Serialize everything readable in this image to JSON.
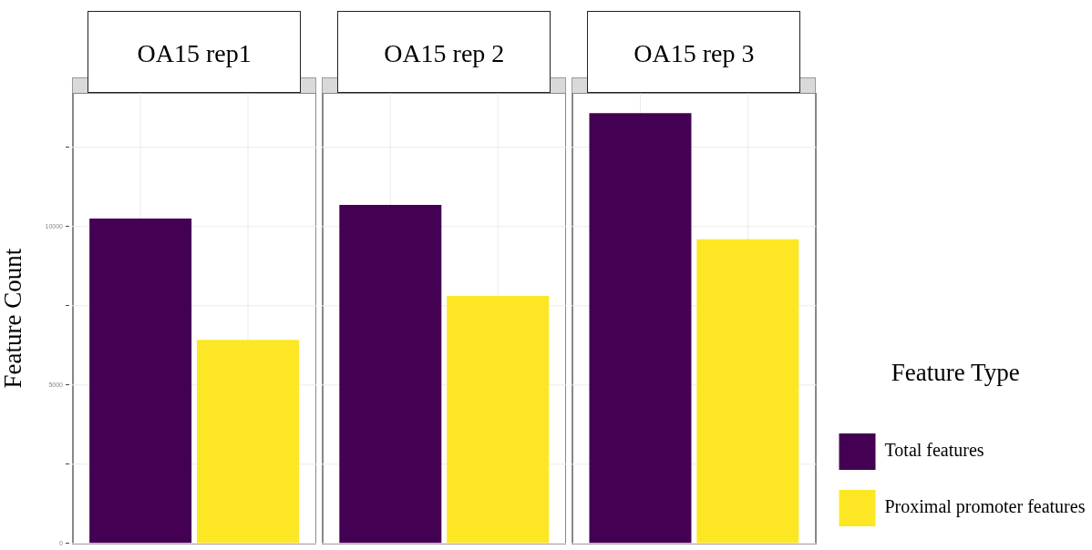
{
  "chart_data": {
    "type": "bar",
    "ylabel": "Feature Count",
    "legend_title": "Feature Type",
    "categories": [
      "OA15 rep1",
      "OA15 rep 2",
      "OA15 rep 3"
    ],
    "series": [
      {
        "name": "Total features",
        "color": "#440154",
        "values": [
          10250,
          10680,
          13580
        ]
      },
      {
        "name": "Proximal promoter features",
        "color": "#fde725",
        "values": [
          6420,
          7810,
          9600
        ]
      }
    ],
    "ylim": [
      0,
      14200
    ],
    "yticks": [
      0,
      {
        "value": 2500,
        "label": null
      },
      5000,
      {
        "value": 7500,
        "label": null
      },
      10000,
      {
        "value": 12500,
        "label": null
      }
    ],
    "grid": true,
    "legend": "right"
  }
}
